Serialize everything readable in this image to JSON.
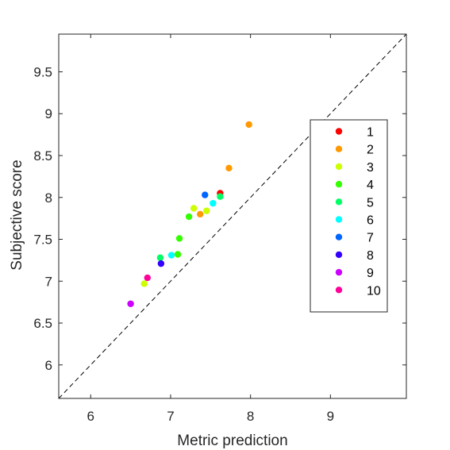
{
  "chart_data": {
    "type": "scatter",
    "title": "",
    "xlabel": "Metric prediction",
    "ylabel": "Subjective score",
    "xlim": [
      5.6,
      9.95
    ],
    "ylim": [
      5.6,
      9.95
    ],
    "xticks": [
      "6",
      "7",
      "8",
      "9"
    ],
    "yticks": [
      "6",
      "6.5",
      "7",
      "7.5",
      "8",
      "8.5",
      "9",
      "9.5"
    ],
    "grid": false,
    "reference_line": {
      "style": "dashed",
      "description": "y = x"
    },
    "legend_position": "right",
    "series": [
      {
        "name": "1",
        "color": "#ff0000",
        "points": [
          [
            7.62,
            8.05
          ]
        ]
      },
      {
        "name": "2",
        "color": "#ff9900",
        "points": [
          [
            7.98,
            8.87
          ],
          [
            7.73,
            8.35
          ],
          [
            7.37,
            7.8
          ]
        ]
      },
      {
        "name": "3",
        "color": "#ccff00",
        "points": [
          [
            7.29,
            7.87
          ],
          [
            7.45,
            7.84
          ],
          [
            6.67,
            6.97
          ]
        ]
      },
      {
        "name": "4",
        "color": "#33ff00",
        "points": [
          [
            7.23,
            7.77
          ],
          [
            7.11,
            7.51
          ],
          [
            7.09,
            7.32
          ]
        ]
      },
      {
        "name": "5",
        "color": "#00ff66",
        "points": [
          [
            7.62,
            8.01
          ],
          [
            6.87,
            7.28
          ]
        ]
      },
      {
        "name": "6",
        "color": "#00ffff",
        "points": [
          [
            7.53,
            7.93
          ],
          [
            7.01,
            7.31
          ]
        ]
      },
      {
        "name": "7",
        "color": "#0066ff",
        "points": [
          [
            7.43,
            8.03
          ]
        ]
      },
      {
        "name": "8",
        "color": "#3300ff",
        "points": [
          [
            6.88,
            7.21
          ]
        ]
      },
      {
        "name": "9",
        "color": "#cc00ff",
        "points": [
          [
            6.5,
            6.73
          ]
        ]
      },
      {
        "name": "10",
        "color": "#ff0099",
        "points": [
          [
            6.71,
            7.04
          ]
        ]
      }
    ]
  }
}
